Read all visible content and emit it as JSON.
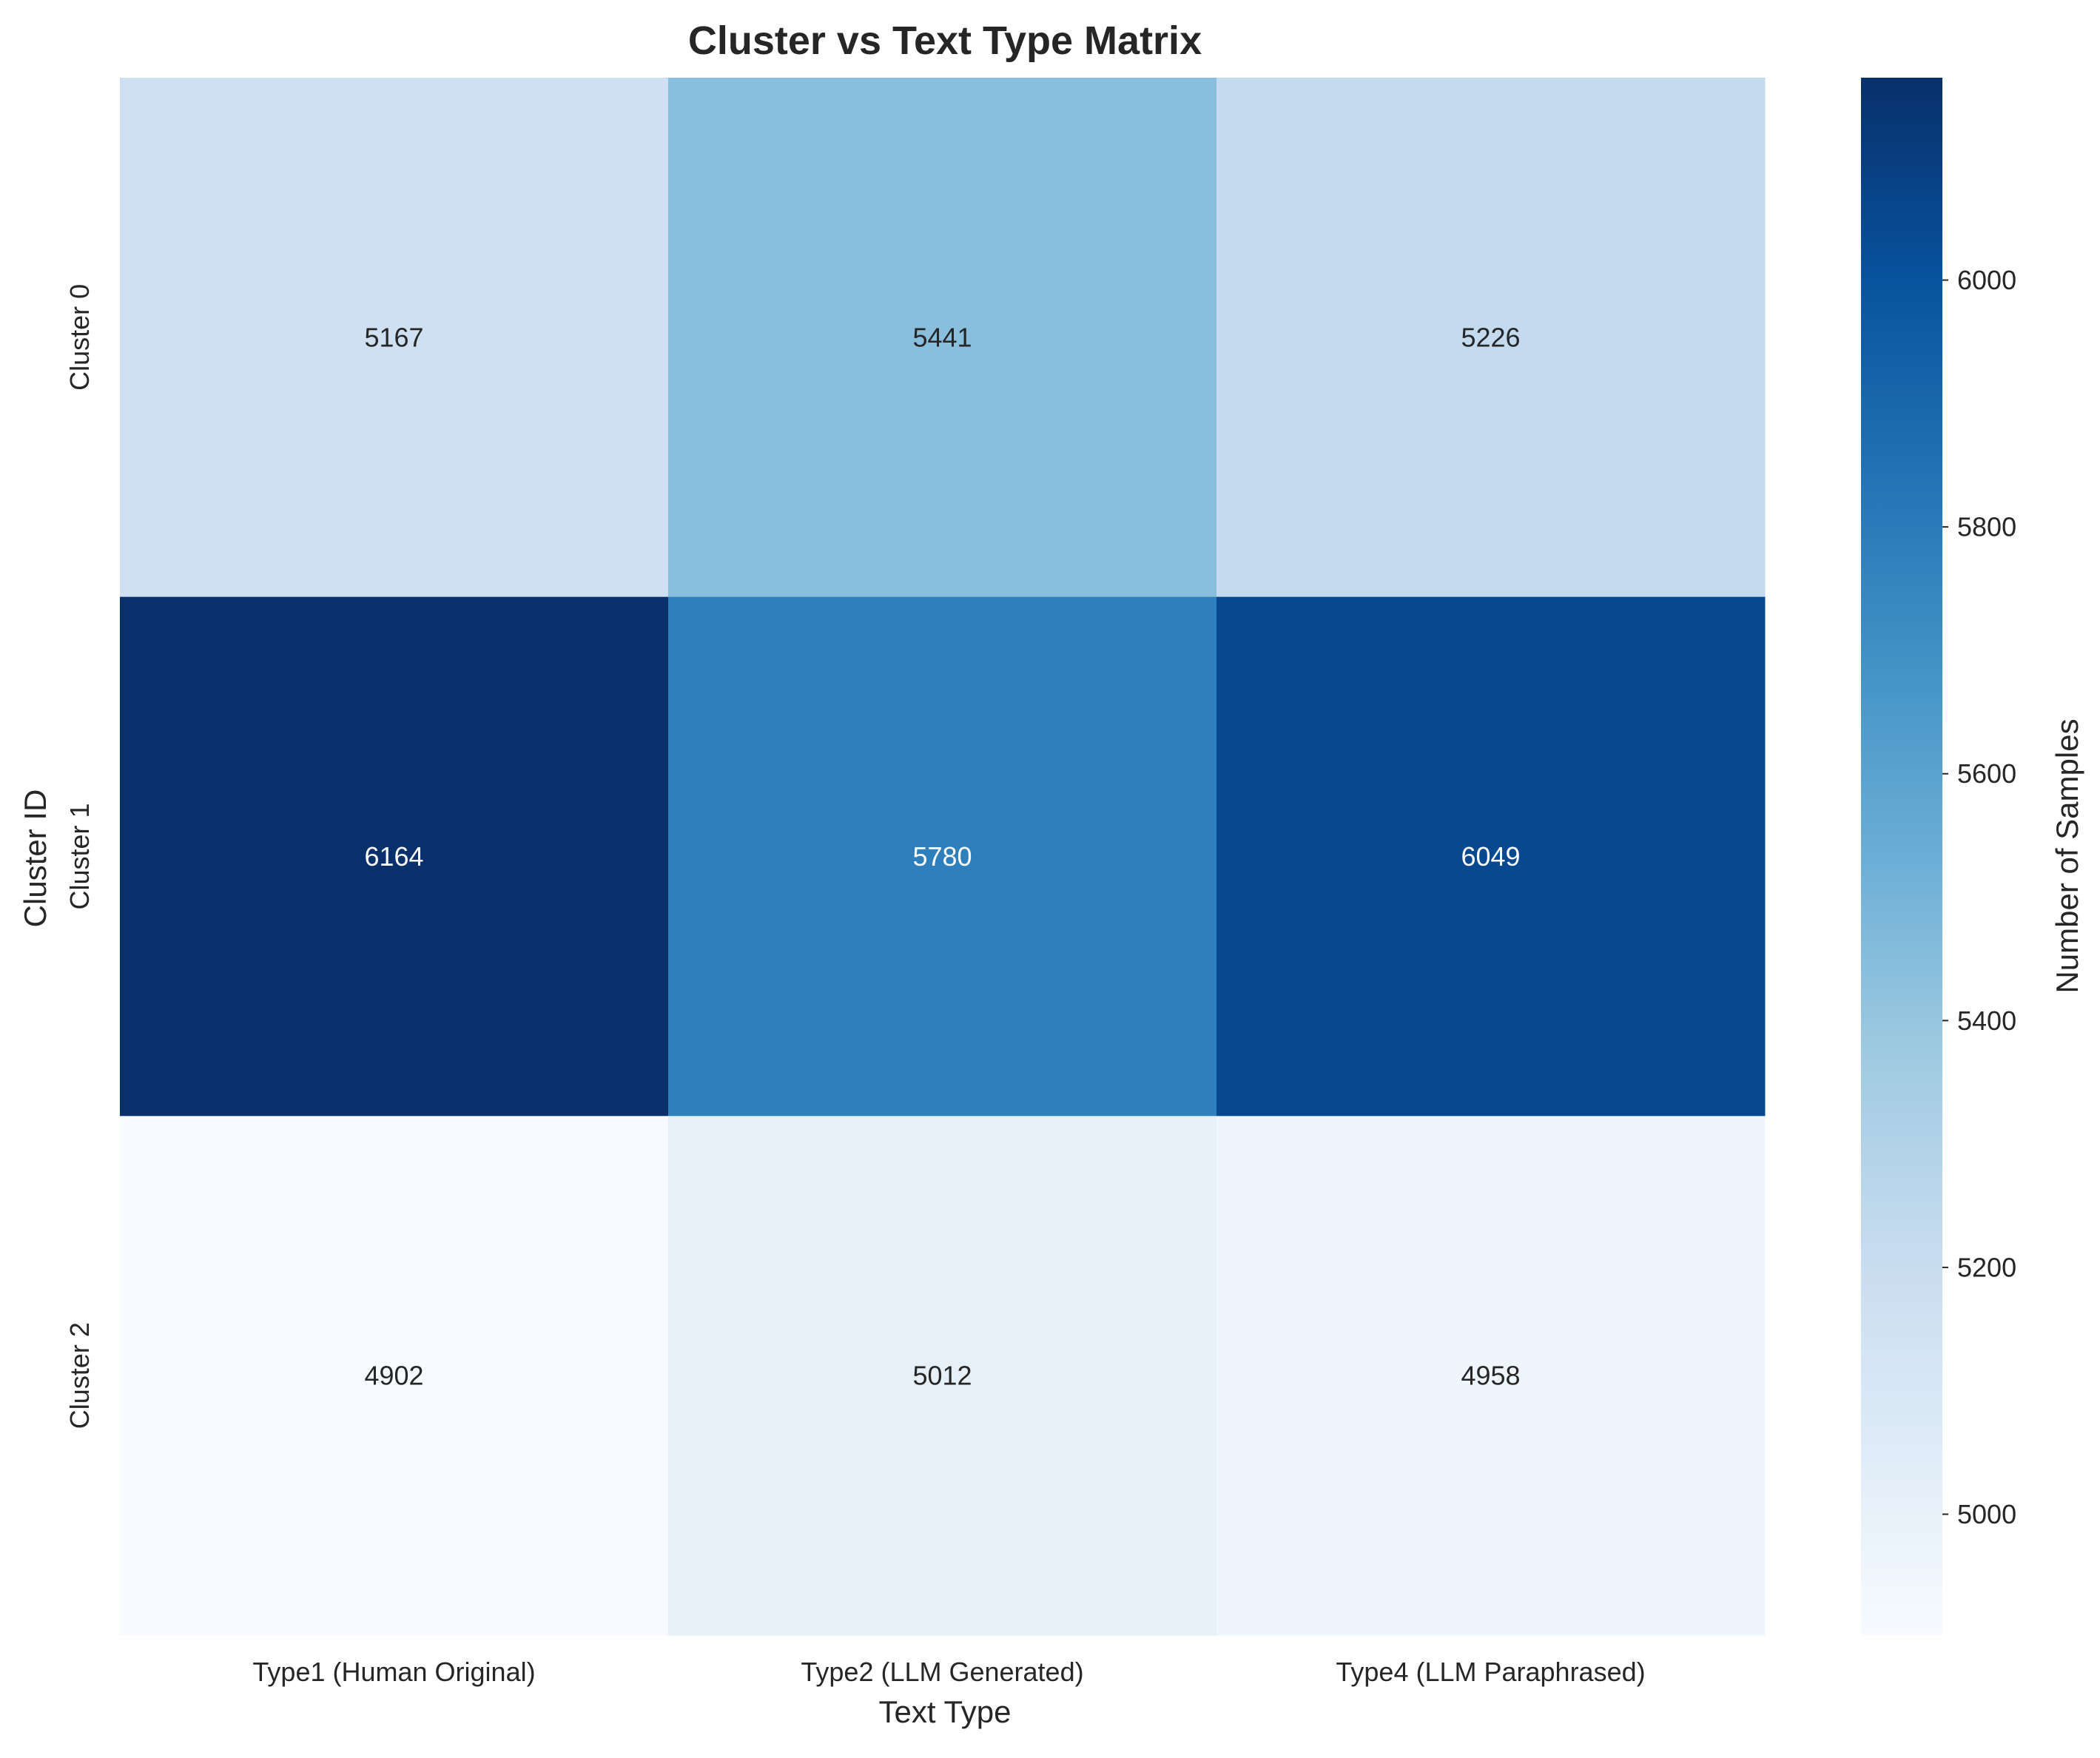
{
  "chart_data": {
    "type": "heatmap",
    "title": "Cluster vs Text Type Matrix",
    "xlabel": "Text Type",
    "ylabel": "Cluster ID",
    "x_categories": [
      "Type1 (Human Original)",
      "Type2 (LLM Generated)",
      "Type4 (LLM Paraphrased)"
    ],
    "y_categories": [
      "Cluster 0",
      "Cluster 1",
      "Cluster 2"
    ],
    "values": [
      [
        5167,
        5441,
        5226
      ],
      [
        6164,
        5780,
        6049
      ],
      [
        4902,
        5012,
        4958
      ]
    ],
    "colormap": "Blues",
    "colorbar": {
      "label": "Number of Samples",
      "range": [
        4902,
        6164
      ],
      "ticks": [
        5000,
        5200,
        5400,
        5600,
        5800,
        6000
      ]
    },
    "annotation_colors": {
      "light": "#ffffff",
      "dark": "#262626"
    }
  }
}
